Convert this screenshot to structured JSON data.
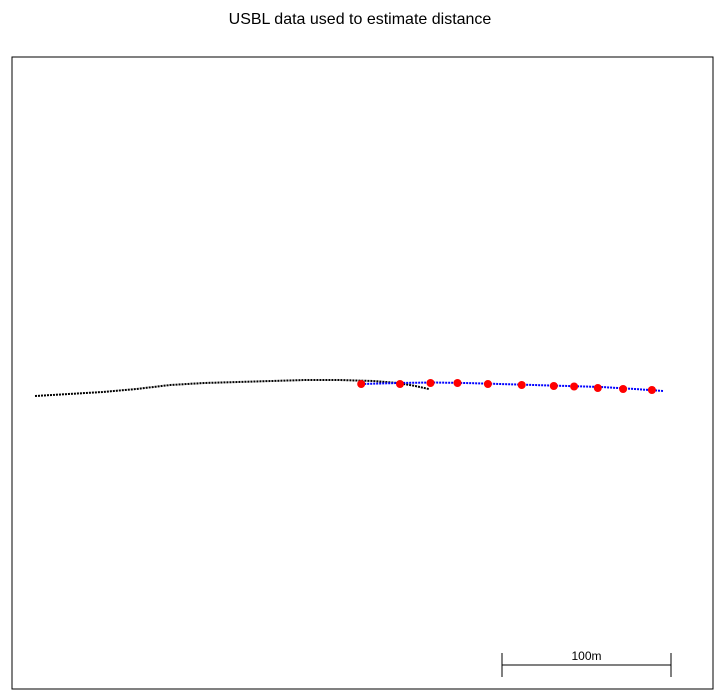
{
  "chart_data": {
    "type": "scatter",
    "title": "USBL data used to estimate distance",
    "xlabel": "",
    "ylabel": "",
    "grid": false,
    "axes_shown": false,
    "xlim": [
      0,
      385
    ],
    "ylim": [
      0,
      350
    ],
    "series": [
      {
        "style": "dotted-line",
        "color": "#000000",
        "values": [
          {
            "x": 0,
            "y": 184
          },
          {
            "x": 20,
            "y": 186
          },
          {
            "x": 40,
            "y": 188
          },
          {
            "x": 60,
            "y": 191
          },
          {
            "x": 80,
            "y": 195
          },
          {
            "x": 100,
            "y": 197
          },
          {
            "x": 120,
            "y": 198
          },
          {
            "x": 140,
            "y": 199
          },
          {
            "x": 160,
            "y": 200
          },
          {
            "x": 180,
            "y": 200
          },
          {
            "x": 200,
            "y": 199
          },
          {
            "x": 215,
            "y": 197
          },
          {
            "x": 225,
            "y": 194
          },
          {
            "x": 233,
            "y": 191
          }
        ]
      },
      {
        "style": "dotted-line",
        "color": "#0000ff",
        "values": [
          {
            "x": 193,
            "y": 196
          },
          {
            "x": 215,
            "y": 197
          },
          {
            "x": 235,
            "y": 197.5
          },
          {
            "x": 255,
            "y": 197
          },
          {
            "x": 275,
            "y": 196
          },
          {
            "x": 295,
            "y": 195
          },
          {
            "x": 315,
            "y": 194
          },
          {
            "x": 335,
            "y": 193
          },
          {
            "x": 355,
            "y": 191
          },
          {
            "x": 372,
            "y": 189
          }
        ]
      },
      {
        "style": "points",
        "color": "#ff0000",
        "values": [
          {
            "x": 193,
            "y": 196
          },
          {
            "x": 216,
            "y": 196
          },
          {
            "x": 234,
            "y": 197
          },
          {
            "x": 250,
            "y": 197
          },
          {
            "x": 268,
            "y": 196
          },
          {
            "x": 288,
            "y": 195
          },
          {
            "x": 307,
            "y": 194
          },
          {
            "x": 319,
            "y": 193.5
          },
          {
            "x": 333,
            "y": 192
          },
          {
            "x": 348,
            "y": 191
          },
          {
            "x": 365,
            "y": 190
          }
        ]
      }
    ],
    "scale_bar": {
      "label": "100m",
      "length": 100
    }
  },
  "colors": {
    "background": "#ffffff",
    "frame": "#000000"
  }
}
